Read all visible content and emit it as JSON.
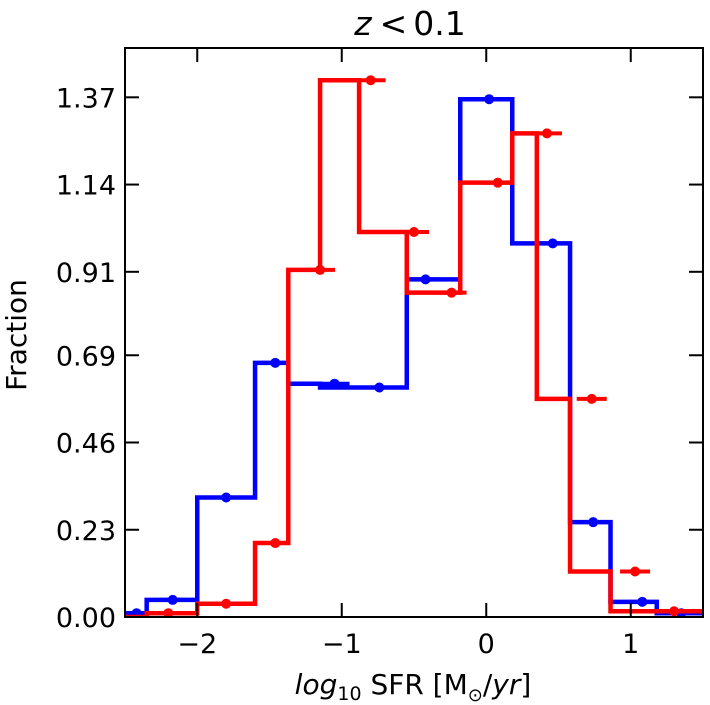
{
  "chart_data": {
    "type": "histogram-step",
    "title": {
      "var": "z",
      "op": "<",
      "value": "0.1"
    },
    "xlabel": {
      "prefix": "log",
      "sub": "10",
      "mid": " SFR [M",
      "sun": "⊙",
      "slash": "/",
      "unit": "yr",
      "close": "]"
    },
    "ylabel": "Fraction",
    "xlim": [
      -2.5,
      1.5
    ],
    "ylim": [
      0.0,
      1.5
    ],
    "xticks": [
      -2,
      -1,
      0,
      1
    ],
    "xtick_labels": [
      "−2",
      "−1",
      "0",
      "1"
    ],
    "yticks": [
      0.0,
      0.23,
      0.46,
      0.69,
      0.91,
      1.14,
      1.37
    ],
    "ytick_labels": [
      "0.00",
      "0.23",
      "0.46",
      "0.69",
      "0.91",
      "1.14",
      "1.37"
    ],
    "bin_edges": [
      -2.5,
      -2.35,
      -2.0,
      -1.6,
      -1.37,
      -1.15,
      -0.88,
      -0.55,
      -0.35,
      -0.18,
      0.18,
      0.35,
      0.58,
      0.86,
      1.18,
      1.5
    ],
    "series": [
      {
        "name": "blue",
        "color": "#0000ff",
        "values": [
          0.01,
          0.045,
          0.315,
          0.67,
          0.615,
          0.605,
          0.605,
          0.89,
          0.89,
          1.365,
          0.985,
          0.985,
          0.25,
          0.04,
          0.01
        ],
        "markers": [
          {
            "x": -2.42,
            "y": 0.01
          },
          {
            "x": -2.17,
            "y": 0.045
          },
          {
            "x": -1.8,
            "y": 0.315
          },
          {
            "x": -1.46,
            "y": 0.67
          },
          {
            "x": -1.05,
            "y": 0.615
          },
          {
            "x": -0.74,
            "y": 0.605
          },
          {
            "x": -0.42,
            "y": 0.89
          },
          {
            "x": 0.02,
            "y": 1.365
          },
          {
            "x": 0.46,
            "y": 0.985
          },
          {
            "x": 0.74,
            "y": 0.25
          },
          {
            "x": 1.08,
            "y": 0.04
          },
          {
            "x": 1.35,
            "y": 0.01
          }
        ]
      },
      {
        "name": "red",
        "color": "#ff0000",
        "values": [
          0.0,
          0.01,
          0.035,
          0.195,
          0.915,
          1.415,
          1.015,
          0.855,
          0.855,
          1.145,
          1.275,
          0.575,
          0.12,
          0.015,
          0.015
        ],
        "markers": [
          {
            "x": -2.2,
            "y": 0.01
          },
          {
            "x": -1.8,
            "y": 0.035
          },
          {
            "x": -1.46,
            "y": 0.195
          },
          {
            "x": -1.15,
            "y": 0.915
          },
          {
            "x": -0.8,
            "y": 1.415
          },
          {
            "x": -0.5,
            "y": 1.015
          },
          {
            "x": -0.24,
            "y": 0.855
          },
          {
            "x": 0.08,
            "y": 1.145
          },
          {
            "x": 0.42,
            "y": 1.275
          },
          {
            "x": 0.73,
            "y": 0.575
          },
          {
            "x": 1.03,
            "y": 0.12
          },
          {
            "x": 1.3,
            "y": 0.015
          }
        ]
      }
    ]
  }
}
